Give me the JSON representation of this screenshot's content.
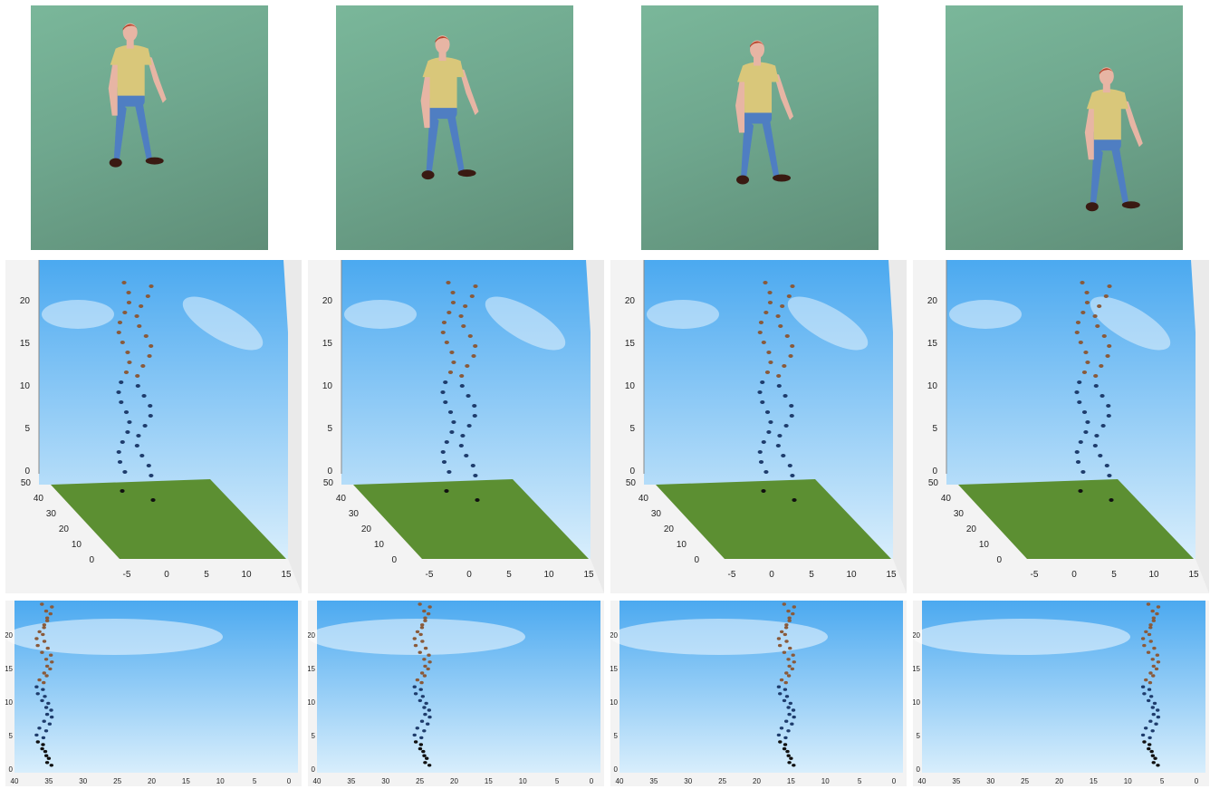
{
  "colors": {
    "sky_top": "#4ba9f0",
    "sky_bottom": "#d8eefc",
    "ground": "#5c8f32",
    "shirt": "#d9c77a",
    "jeans": "#4f7ec2",
    "skin": "#e7b5a4",
    "hair": "#b8442c",
    "shoe": "#3a1a12",
    "marker_upper": "#8a5a3a",
    "marker_lower": "#1e3c6c",
    "marker_feet": "#101010"
  },
  "persp_axes": {
    "z_ticks": [
      "0",
      "5",
      "10",
      "15",
      "20"
    ],
    "y_ticks": [
      "0",
      "10",
      "20",
      "30",
      "40",
      "50"
    ],
    "x_ticks": [
      "-5",
      "0",
      "5",
      "10",
      "15"
    ]
  },
  "side_axes": {
    "y_ticks": [
      "0",
      "5",
      "10",
      "15",
      "20"
    ],
    "x_ticks": [
      "40",
      "35",
      "30",
      "25",
      "20",
      "15",
      "10",
      "5",
      "0"
    ]
  },
  "frames": [
    {
      "id": "frame-1",
      "figure_x": 0.35,
      "figure_y": 0.08,
      "persp_dx": -4,
      "side_cx": 36
    },
    {
      "id": "frame-2",
      "figure_x": 0.38,
      "figure_y": 0.13,
      "persp_dx": 2,
      "side_cx": 25
    },
    {
      "id": "frame-3",
      "figure_x": 0.42,
      "figure_y": 0.15,
      "persp_dx": 6,
      "side_cx": 16
    },
    {
      "id": "frame-4",
      "figure_x": 0.61,
      "figure_y": 0.26,
      "persp_dx": 10,
      "side_cx": 7
    }
  ]
}
